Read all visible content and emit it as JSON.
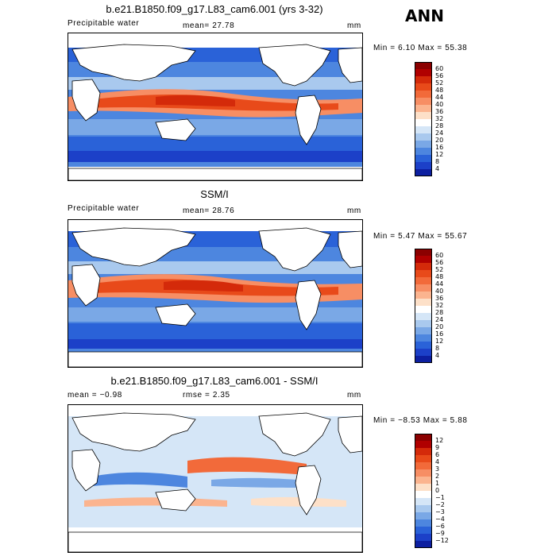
{
  "season_label": "ANN",
  "panels": [
    {
      "title": "b.e21.B1850.f09_g17.L83_cam6.001 (yrs 3-32)",
      "left_label": "Precipitable water",
      "center_label": "mean=  27.78",
      "units": "mm",
      "minmax": "Min =   6.10 Max =  55.38",
      "colorbar_labels": [
        "60",
        "56",
        "52",
        "48",
        "44",
        "40",
        "36",
        "32",
        "28",
        "24",
        "20",
        "16",
        "12",
        "8",
        "4"
      ],
      "colorbar_colors": [
        "#8b0000",
        "#b00000",
        "#d42a0a",
        "#e84a1a",
        "#f26a3a",
        "#f78e64",
        "#fbb48f",
        "#fde0c8",
        "#ffffff",
        "#d5e6f7",
        "#a9c9ee",
        "#7aa8e6",
        "#4d86df",
        "#2a62d8",
        "#1c40c8",
        "#0d1fa0"
      ]
    },
    {
      "title": "SSM/I",
      "left_label": "Precipitable water",
      "center_label": "mean=  28.76",
      "units": "mm",
      "minmax": "Min =   5.47 Max =  55.67",
      "colorbar_labels": [
        "60",
        "56",
        "52",
        "48",
        "44",
        "40",
        "36",
        "32",
        "28",
        "24",
        "20",
        "16",
        "12",
        "8",
        "4"
      ],
      "colorbar_colors": [
        "#8b0000",
        "#b00000",
        "#d42a0a",
        "#e84a1a",
        "#f26a3a",
        "#f78e64",
        "#fbb48f",
        "#fde0c8",
        "#ffffff",
        "#d5e6f7",
        "#a9c9ee",
        "#7aa8e6",
        "#4d86df",
        "#2a62d8",
        "#1c40c8",
        "#0d1fa0"
      ]
    },
    {
      "title": "b.e21.B1850.f09_g17.L83_cam6.001 - SSM/I",
      "left_label": "mean =   −0.98",
      "center_label": "rmse =   2.35",
      "units": "mm",
      "minmax": "Min =  −8.53 Max =   5.88",
      "colorbar_labels": [
        "12",
        "9",
        "6",
        "4",
        "3",
        "2",
        "1",
        "0",
        "−1",
        "−2",
        "−3",
        "−4",
        "−6",
        "−9",
        "−12"
      ],
      "colorbar_colors": [
        "#8b0000",
        "#b00000",
        "#d42a0a",
        "#e84a1a",
        "#f26a3a",
        "#f78e64",
        "#fbb48f",
        "#fde0c8",
        "#ffffff",
        "#d5e6f7",
        "#a9c9ee",
        "#7aa8e6",
        "#4d86df",
        "#2a62d8",
        "#1c40c8",
        "#0d1fa0"
      ]
    }
  ],
  "colors": {
    "land": "#ffffff",
    "coast": "#000000",
    "deep_red": "#8b0000",
    "red": "#e84a1a",
    "light_red": "#fbb48f",
    "white": "#ffffff",
    "light_blue": "#a9c9ee",
    "blue": "#2a62d8",
    "dark_blue": "#0d1fa0"
  }
}
